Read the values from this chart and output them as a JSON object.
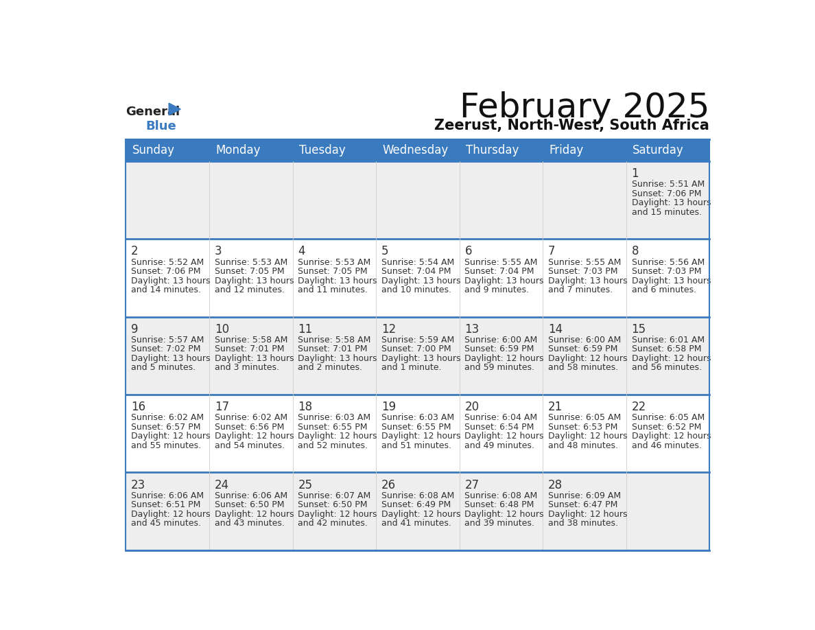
{
  "title": "February 2025",
  "subtitle": "Zeerust, North-West, South Africa",
  "header_color": "#3a7abf",
  "header_text_color": "#ffffff",
  "day_names": [
    "Sunday",
    "Monday",
    "Tuesday",
    "Wednesday",
    "Thursday",
    "Friday",
    "Saturday"
  ],
  "background_color": "#ffffff",
  "cell_bg_even": "#eeeeee",
  "cell_bg_odd": "#ffffff",
  "border_color": "#3a7abf",
  "day_number_color": "#333333",
  "text_color": "#333333",
  "days": [
    {
      "day": 1,
      "col": 6,
      "row": 0,
      "sunrise": "5:51 AM",
      "sunset": "7:06 PM",
      "daylight": "13 hours\nand 15 minutes."
    },
    {
      "day": 2,
      "col": 0,
      "row": 1,
      "sunrise": "5:52 AM",
      "sunset": "7:06 PM",
      "daylight": "13 hours\nand 14 minutes."
    },
    {
      "day": 3,
      "col": 1,
      "row": 1,
      "sunrise": "5:53 AM",
      "sunset": "7:05 PM",
      "daylight": "13 hours\nand 12 minutes."
    },
    {
      "day": 4,
      "col": 2,
      "row": 1,
      "sunrise": "5:53 AM",
      "sunset": "7:05 PM",
      "daylight": "13 hours\nand 11 minutes."
    },
    {
      "day": 5,
      "col": 3,
      "row": 1,
      "sunrise": "5:54 AM",
      "sunset": "7:04 PM",
      "daylight": "13 hours\nand 10 minutes."
    },
    {
      "day": 6,
      "col": 4,
      "row": 1,
      "sunrise": "5:55 AM",
      "sunset": "7:04 PM",
      "daylight": "13 hours\nand 9 minutes."
    },
    {
      "day": 7,
      "col": 5,
      "row": 1,
      "sunrise": "5:55 AM",
      "sunset": "7:03 PM",
      "daylight": "13 hours\nand 7 minutes."
    },
    {
      "day": 8,
      "col": 6,
      "row": 1,
      "sunrise": "5:56 AM",
      "sunset": "7:03 PM",
      "daylight": "13 hours\nand 6 minutes."
    },
    {
      "day": 9,
      "col": 0,
      "row": 2,
      "sunrise": "5:57 AM",
      "sunset": "7:02 PM",
      "daylight": "13 hours\nand 5 minutes."
    },
    {
      "day": 10,
      "col": 1,
      "row": 2,
      "sunrise": "5:58 AM",
      "sunset": "7:01 PM",
      "daylight": "13 hours\nand 3 minutes."
    },
    {
      "day": 11,
      "col": 2,
      "row": 2,
      "sunrise": "5:58 AM",
      "sunset": "7:01 PM",
      "daylight": "13 hours\nand 2 minutes."
    },
    {
      "day": 12,
      "col": 3,
      "row": 2,
      "sunrise": "5:59 AM",
      "sunset": "7:00 PM",
      "daylight": "13 hours\nand 1 minute."
    },
    {
      "day": 13,
      "col": 4,
      "row": 2,
      "sunrise": "6:00 AM",
      "sunset": "6:59 PM",
      "daylight": "12 hours\nand 59 minutes."
    },
    {
      "day": 14,
      "col": 5,
      "row": 2,
      "sunrise": "6:00 AM",
      "sunset": "6:59 PM",
      "daylight": "12 hours\nand 58 minutes."
    },
    {
      "day": 15,
      "col": 6,
      "row": 2,
      "sunrise": "6:01 AM",
      "sunset": "6:58 PM",
      "daylight": "12 hours\nand 56 minutes."
    },
    {
      "day": 16,
      "col": 0,
      "row": 3,
      "sunrise": "6:02 AM",
      "sunset": "6:57 PM",
      "daylight": "12 hours\nand 55 minutes."
    },
    {
      "day": 17,
      "col": 1,
      "row": 3,
      "sunrise": "6:02 AM",
      "sunset": "6:56 PM",
      "daylight": "12 hours\nand 54 minutes."
    },
    {
      "day": 18,
      "col": 2,
      "row": 3,
      "sunrise": "6:03 AM",
      "sunset": "6:55 PM",
      "daylight": "12 hours\nand 52 minutes."
    },
    {
      "day": 19,
      "col": 3,
      "row": 3,
      "sunrise": "6:03 AM",
      "sunset": "6:55 PM",
      "daylight": "12 hours\nand 51 minutes."
    },
    {
      "day": 20,
      "col": 4,
      "row": 3,
      "sunrise": "6:04 AM",
      "sunset": "6:54 PM",
      "daylight": "12 hours\nand 49 minutes."
    },
    {
      "day": 21,
      "col": 5,
      "row": 3,
      "sunrise": "6:05 AM",
      "sunset": "6:53 PM",
      "daylight": "12 hours\nand 48 minutes."
    },
    {
      "day": 22,
      "col": 6,
      "row": 3,
      "sunrise": "6:05 AM",
      "sunset": "6:52 PM",
      "daylight": "12 hours\nand 46 minutes."
    },
    {
      "day": 23,
      "col": 0,
      "row": 4,
      "sunrise": "6:06 AM",
      "sunset": "6:51 PM",
      "daylight": "12 hours\nand 45 minutes."
    },
    {
      "day": 24,
      "col": 1,
      "row": 4,
      "sunrise": "6:06 AM",
      "sunset": "6:50 PM",
      "daylight": "12 hours\nand 43 minutes."
    },
    {
      "day": 25,
      "col": 2,
      "row": 4,
      "sunrise": "6:07 AM",
      "sunset": "6:50 PM",
      "daylight": "12 hours\nand 42 minutes."
    },
    {
      "day": 26,
      "col": 3,
      "row": 4,
      "sunrise": "6:08 AM",
      "sunset": "6:49 PM",
      "daylight": "12 hours\nand 41 minutes."
    },
    {
      "day": 27,
      "col": 4,
      "row": 4,
      "sunrise": "6:08 AM",
      "sunset": "6:48 PM",
      "daylight": "12 hours\nand 39 minutes."
    },
    {
      "day": 28,
      "col": 5,
      "row": 4,
      "sunrise": "6:09 AM",
      "sunset": "6:47 PM",
      "daylight": "12 hours\nand 38 minutes."
    }
  ],
  "num_rows": 5,
  "num_cols": 7,
  "logo_general_color": "#222222",
  "logo_blue_color": "#3a7abf",
  "title_fontsize": 36,
  "subtitle_fontsize": 15,
  "weekday_fontsize": 12,
  "day_number_fontsize": 12,
  "cell_text_fontsize": 9
}
